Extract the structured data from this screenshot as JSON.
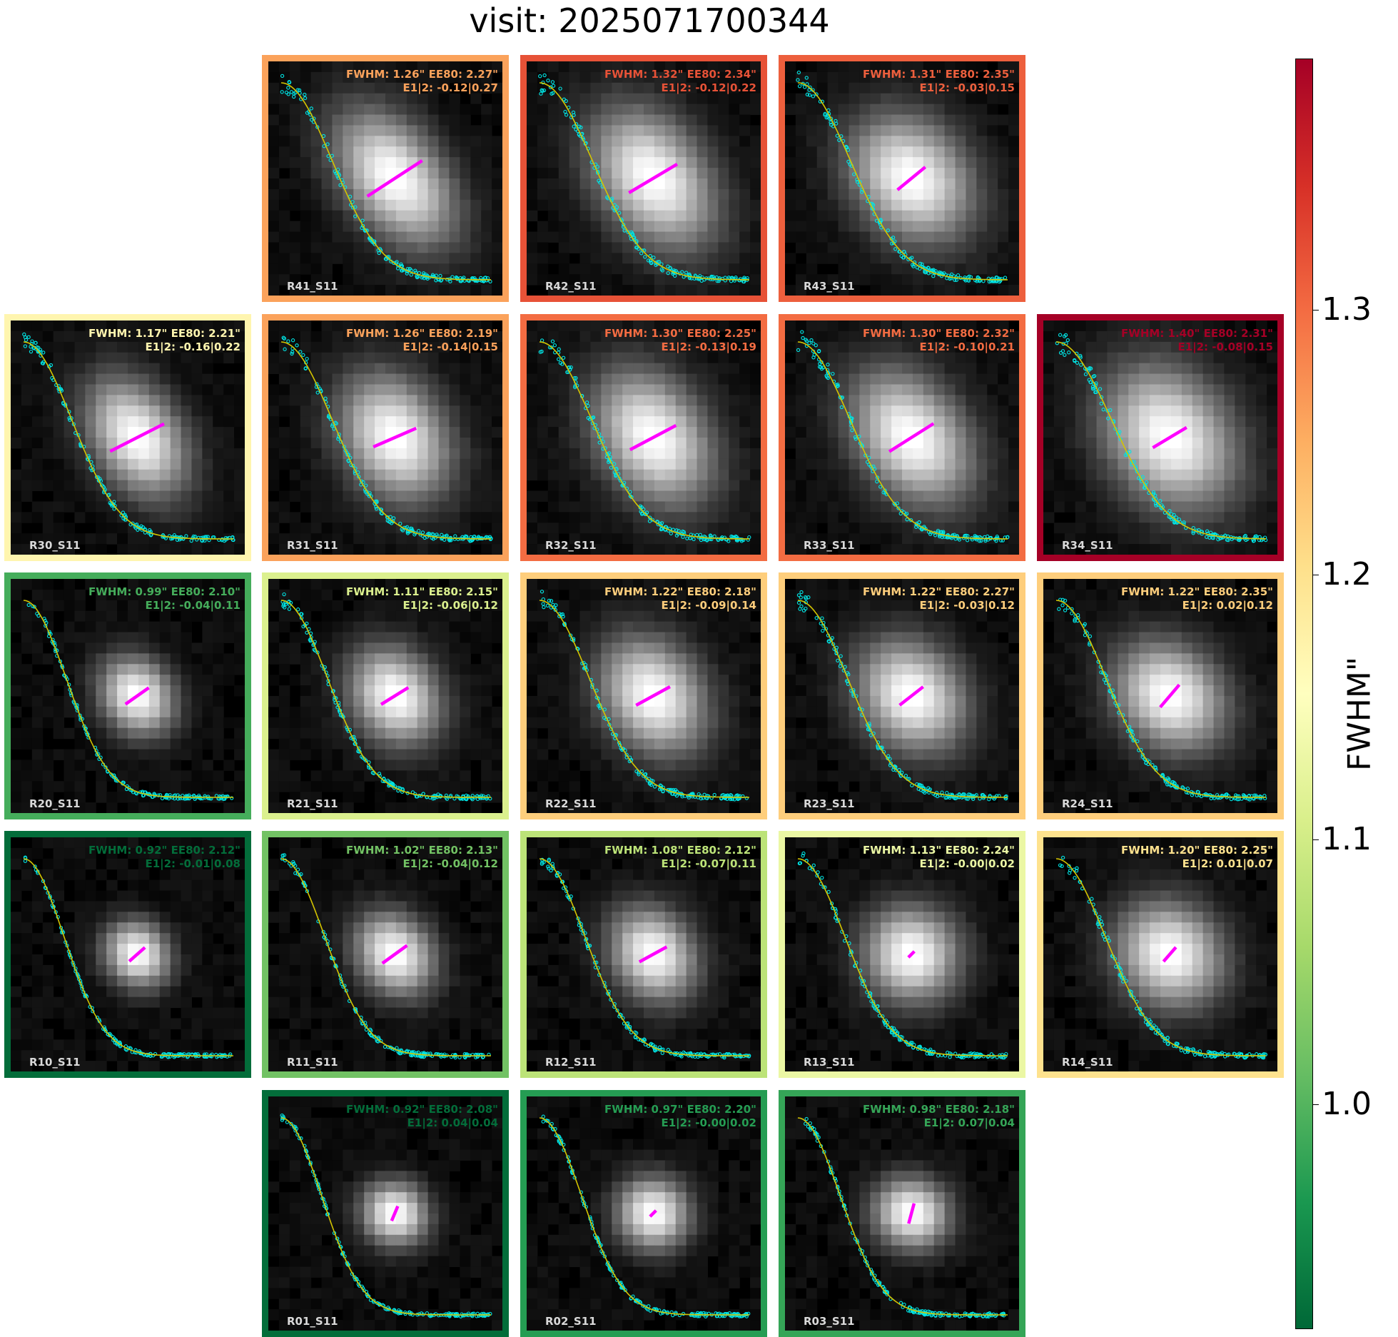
{
  "title": "visit: 2025071700344",
  "chart_data": {
    "type": "heatmap",
    "title": "visit: 2025071700344",
    "colorbar": {
      "label": "FWHM\"",
      "min": 0.915,
      "max": 1.395,
      "ticks": [
        "1.0",
        "1.1",
        "1.2",
        "1.3"
      ],
      "tick_values": [
        1.0,
        1.1,
        1.2,
        1.3
      ],
      "colormap": "RdYlGn_r"
    },
    "panels": [
      {
        "name": "R41_S11",
        "fwhm": 1.26,
        "ee80": 2.27,
        "e1": -0.12,
        "e2": 0.27,
        "fwhm_text": "FWHM: 1.26\" EE80: 2.27\"",
        "e_text": "E1|2: -0.12|0.27",
        "row": 0,
        "col": 1
      },
      {
        "name": "R42_S11",
        "fwhm": 1.32,
        "ee80": 2.34,
        "e1": -0.12,
        "e2": 0.22,
        "fwhm_text": "FWHM: 1.32\" EE80: 2.34\"",
        "e_text": "E1|2: -0.12|0.22",
        "row": 0,
        "col": 2
      },
      {
        "name": "R43_S11",
        "fwhm": 1.31,
        "ee80": 2.35,
        "e1": -0.03,
        "e2": 0.15,
        "fwhm_text": "FWHM: 1.31\" EE80: 2.35\"",
        "e_text": "E1|2: -0.03|0.15",
        "row": 0,
        "col": 3
      },
      {
        "name": "R30_S11",
        "fwhm": 1.17,
        "ee80": 2.21,
        "e1": -0.16,
        "e2": 0.22,
        "fwhm_text": "FWHM: 1.17\" EE80: 2.21\"",
        "e_text": "E1|2: -0.16|0.22",
        "row": 1,
        "col": 0
      },
      {
        "name": "R31_S11",
        "fwhm": 1.26,
        "ee80": 2.19,
        "e1": -0.14,
        "e2": 0.15,
        "fwhm_text": "FWHM: 1.26\" EE80: 2.19\"",
        "e_text": "E1|2: -0.14|0.15",
        "row": 1,
        "col": 1
      },
      {
        "name": "R32_S11",
        "fwhm": 1.3,
        "ee80": 2.25,
        "e1": -0.13,
        "e2": 0.19,
        "fwhm_text": "FWHM: 1.30\" EE80: 2.25\"",
        "e_text": "E1|2: -0.13|0.19",
        "row": 1,
        "col": 2
      },
      {
        "name": "R33_S11",
        "fwhm": 1.3,
        "ee80": 2.32,
        "e1": -0.1,
        "e2": 0.21,
        "fwhm_text": "FWHM: 1.30\" EE80: 2.32\"",
        "e_text": "E1|2: -0.10|0.21",
        "row": 1,
        "col": 3
      },
      {
        "name": "R34_S11",
        "fwhm": 1.4,
        "ee80": 2.31,
        "e1": -0.08,
        "e2": 0.15,
        "fwhm_text": "FWHM: 1.40\" EE80: 2.31\"",
        "e_text": "E1|2: -0.08|0.15",
        "row": 1,
        "col": 4
      },
      {
        "name": "R20_S11",
        "fwhm": 0.99,
        "ee80": 2.1,
        "e1": -0.04,
        "e2": 0.11,
        "fwhm_text": "FWHM: 0.99\" EE80: 2.10\"",
        "e_text": "E1|2: -0.04|0.11",
        "row": 2,
        "col": 0
      },
      {
        "name": "R21_S11",
        "fwhm": 1.11,
        "ee80": 2.15,
        "e1": -0.06,
        "e2": 0.12,
        "fwhm_text": "FWHM: 1.11\" EE80: 2.15\"",
        "e_text": "E1|2: -0.06|0.12",
        "row": 2,
        "col": 1
      },
      {
        "name": "R22_S11",
        "fwhm": 1.22,
        "ee80": 2.18,
        "e1": -0.09,
        "e2": 0.14,
        "fwhm_text": "FWHM: 1.22\" EE80: 2.18\"",
        "e_text": "E1|2: -0.09|0.14",
        "row": 2,
        "col": 2
      },
      {
        "name": "R23_S11",
        "fwhm": 1.22,
        "ee80": 2.27,
        "e1": -0.03,
        "e2": 0.12,
        "fwhm_text": "FWHM: 1.22\" EE80: 2.27\"",
        "e_text": "E1|2: -0.03|0.12",
        "row": 2,
        "col": 3
      },
      {
        "name": "R24_S11",
        "fwhm": 1.22,
        "ee80": 2.35,
        "e1": 0.02,
        "e2": 0.12,
        "fwhm_text": "FWHM: 1.22\" EE80: 2.35\"",
        "e_text": "E1|2: 0.02|0.12",
        "row": 2,
        "col": 4
      },
      {
        "name": "R10_S11",
        "fwhm": 0.92,
        "ee80": 2.12,
        "e1": -0.01,
        "e2": 0.08,
        "fwhm_text": "FWHM: 0.92\" EE80: 2.12\"",
        "e_text": "E1|2: -0.01|0.08",
        "row": 3,
        "col": 0
      },
      {
        "name": "R11_S11",
        "fwhm": 1.02,
        "ee80": 2.13,
        "e1": -0.04,
        "e2": 0.12,
        "fwhm_text": "FWHM: 1.02\" EE80: 2.13\"",
        "e_text": "E1|2: -0.04|0.12",
        "row": 3,
        "col": 1
      },
      {
        "name": "R12_S11",
        "fwhm": 1.08,
        "ee80": 2.12,
        "e1": -0.07,
        "e2": 0.11,
        "fwhm_text": "FWHM: 1.08\" EE80: 2.12\"",
        "e_text": "E1|2: -0.07|0.11",
        "row": 3,
        "col": 2
      },
      {
        "name": "R13_S11",
        "fwhm": 1.13,
        "ee80": 2.24,
        "e1": -0.0,
        "e2": 0.02,
        "fwhm_text": "FWHM: 1.13\" EE80: 2.24\"",
        "e_text": "E1|2: -0.00|0.02",
        "row": 3,
        "col": 3
      },
      {
        "name": "R14_S11",
        "fwhm": 1.2,
        "ee80": 2.25,
        "e1": 0.01,
        "e2": 0.07,
        "fwhm_text": "FWHM: 1.20\" EE80: 2.25\"",
        "e_text": "E1|2: 0.01|0.07",
        "row": 3,
        "col": 4
      },
      {
        "name": "R01_S11",
        "fwhm": 0.92,
        "ee80": 2.08,
        "e1": 0.04,
        "e2": 0.04,
        "fwhm_text": "FWHM: 0.92\" EE80: 2.08\"",
        "e_text": "E1|2: 0.04|0.04",
        "row": 4,
        "col": 1
      },
      {
        "name": "R02_S11",
        "fwhm": 0.97,
        "ee80": 2.2,
        "e1": -0.0,
        "e2": 0.02,
        "fwhm_text": "FWHM: 0.97\" EE80: 2.20\"",
        "e_text": "E1|2: -0.00|0.02",
        "row": 4,
        "col": 2
      },
      {
        "name": "R03_S11",
        "fwhm": 0.98,
        "ee80": 2.18,
        "e1": 0.07,
        "e2": 0.04,
        "fwhm_text": "FWHM: 0.98\" EE80: 2.18\"",
        "e_text": "E1|2: 0.07|0.04",
        "row": 4,
        "col": 3
      }
    ],
    "marker_colors": {
      "points": "#00e5e5",
      "fit_line": "#d4c400",
      "whisker": "#ff00ff"
    }
  }
}
